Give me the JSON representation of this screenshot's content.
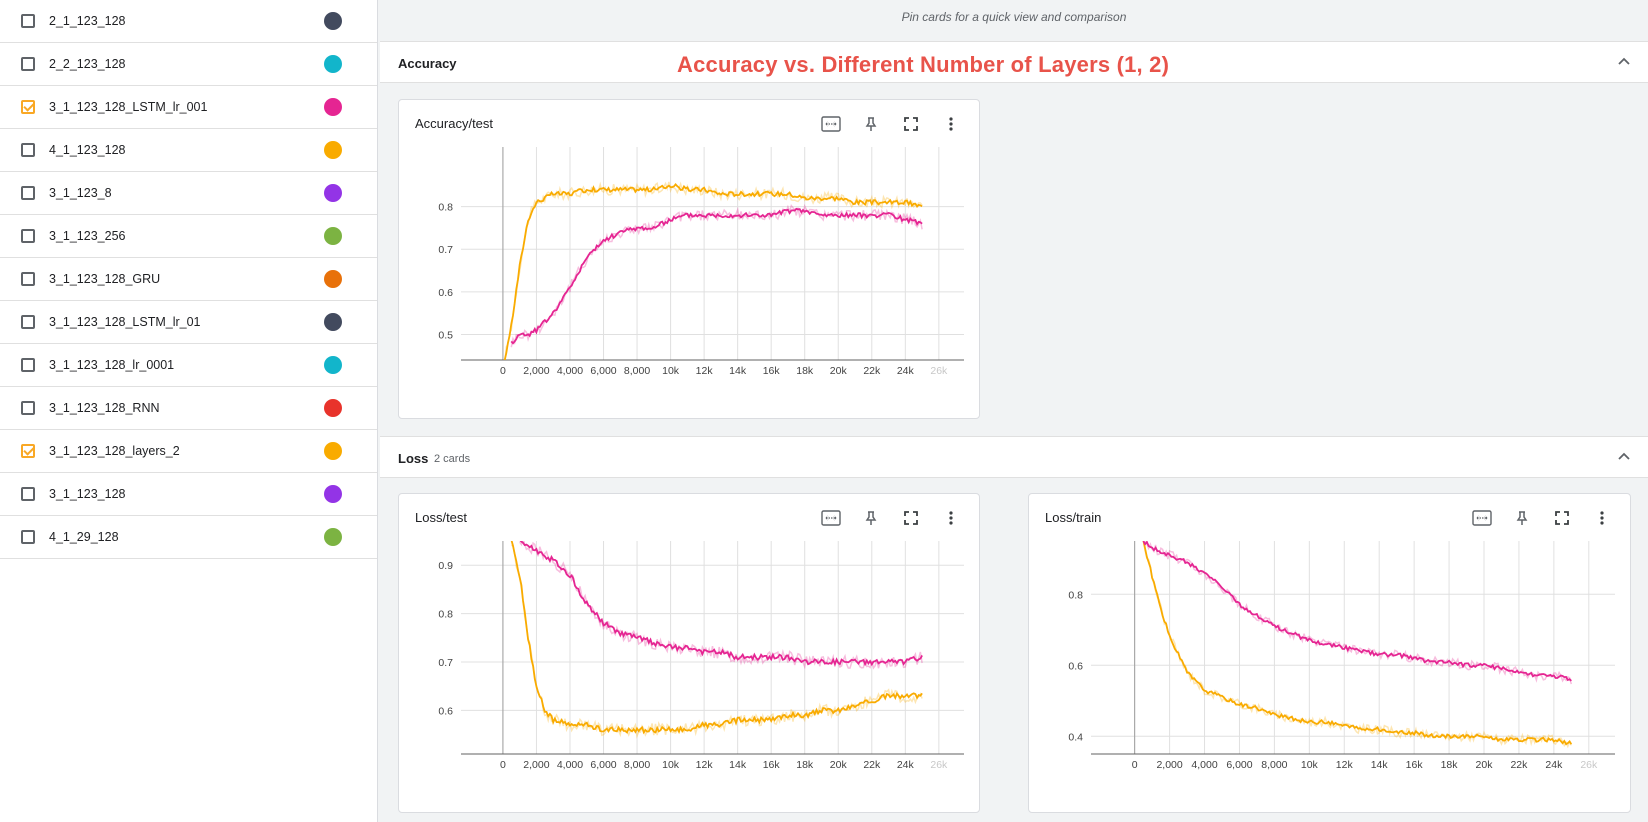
{
  "sidebar": {
    "runs": [
      {
        "label": "2_1_123_128",
        "checked": false,
        "color": "#424a5e"
      },
      {
        "label": "2_2_123_128",
        "checked": false,
        "color": "#12b5cb"
      },
      {
        "label": "3_1_123_128_LSTM_lr_001",
        "checked": true,
        "color": "#e52592"
      },
      {
        "label": "4_1_123_128",
        "checked": false,
        "color": "#f9ab00"
      },
      {
        "label": "3_1_123_8",
        "checked": false,
        "color": "#9334e6"
      },
      {
        "label": "3_1_123_256",
        "checked": false,
        "color": "#7cb342"
      },
      {
        "label": "3_1_123_128_GRU",
        "checked": false,
        "color": "#e8710a"
      },
      {
        "label": "3_1_123_128_LSTM_lr_01",
        "checked": false,
        "color": "#424a5e"
      },
      {
        "label": "3_1_123_128_lr_0001",
        "checked": false,
        "color": "#12b5cb"
      },
      {
        "label": "3_1_123_128_RNN",
        "checked": false,
        "color": "#e8332b"
      },
      {
        "label": "3_1_123_128_layers_2",
        "checked": true,
        "color": "#f9ab00"
      },
      {
        "label": "3_1_123_128",
        "checked": false,
        "color": "#9334e6"
      },
      {
        "label": "4_1_29_128",
        "checked": false,
        "color": "#7cb342"
      }
    ]
  },
  "main": {
    "pin_hint": "Pin cards for a quick view and comparison",
    "annotation": "Accuracy vs. Different Number of Layers (1, 2)",
    "accuracy_group": {
      "title": "Accuracy"
    },
    "loss_group": {
      "title": "Loss",
      "count": "2 cards"
    }
  },
  "icons": [
    "fit-domain-icon",
    "pin-icon",
    "fullscreen-icon",
    "more-vert-icon",
    "chevron-up-icon"
  ],
  "colors": {
    "pink": "#e52592",
    "orange": "#f9ab00"
  },
  "chart_data": [
    {
      "type": "line",
      "title": "Accuracy/test",
      "xlim": [
        -2500,
        27500
      ],
      "ylim": [
        0.44,
        0.94
      ],
      "xticks": [
        0,
        2000,
        4000,
        6000,
        8000,
        10000,
        12000,
        14000,
        16000,
        18000,
        20000,
        22000,
        24000,
        26000
      ],
      "xtick_labels": [
        "0",
        "2,000",
        "4,000",
        "6,000",
        "8,000",
        "10k",
        "12k",
        "14k",
        "16k",
        "18k",
        "20k",
        "22k",
        "24k",
        "26k"
      ],
      "yticks": [
        0.5,
        0.6,
        0.7,
        0.8
      ],
      "ytick_labels": [
        "0.5",
        "0.6",
        "0.7",
        "0.8"
      ],
      "grid": true,
      "series": [
        {
          "color": "#f9ab00",
          "x": [
            0,
            500,
            1000,
            1500,
            2000,
            2500,
            3000,
            4000,
            5000,
            6000,
            7000,
            8000,
            9000,
            10000,
            11000,
            12000,
            13000,
            14000,
            15000,
            16000,
            17000,
            18000,
            19000,
            20000,
            21000,
            22000,
            23000,
            24000,
            25000
          ],
          "y": [
            0.42,
            0.52,
            0.66,
            0.77,
            0.81,
            0.82,
            0.83,
            0.83,
            0.84,
            0.84,
            0.84,
            0.84,
            0.84,
            0.85,
            0.84,
            0.84,
            0.83,
            0.83,
            0.83,
            0.83,
            0.83,
            0.82,
            0.82,
            0.82,
            0.81,
            0.81,
            0.81,
            0.81,
            0.8
          ]
        },
        {
          "color": "#e52592",
          "x": [
            500,
            1000,
            1500,
            2000,
            3000,
            4000,
            5000,
            6000,
            7000,
            8000,
            9000,
            10000,
            11000,
            12000,
            13000,
            14000,
            15000,
            16000,
            17000,
            18000,
            19000,
            20000,
            21000,
            22000,
            23000,
            24000,
            25000
          ],
          "y": [
            0.48,
            0.5,
            0.5,
            0.51,
            0.55,
            0.61,
            0.68,
            0.72,
            0.74,
            0.75,
            0.75,
            0.77,
            0.78,
            0.78,
            0.78,
            0.78,
            0.78,
            0.78,
            0.79,
            0.79,
            0.78,
            0.78,
            0.78,
            0.78,
            0.78,
            0.77,
            0.76
          ]
        }
      ]
    },
    {
      "type": "line",
      "title": "Loss/test",
      "xlim": [
        -2500,
        27500
      ],
      "ylim": [
        0.51,
        0.95
      ],
      "xticks": [
        0,
        2000,
        4000,
        6000,
        8000,
        10000,
        12000,
        14000,
        16000,
        18000,
        20000,
        22000,
        24000,
        26000
      ],
      "xtick_labels": [
        "0",
        "2,000",
        "4,000",
        "6,000",
        "8,000",
        "10k",
        "12k",
        "14k",
        "16k",
        "18k",
        "20k",
        "22k",
        "24k",
        "26k"
      ],
      "yticks": [
        0.6,
        0.7,
        0.8,
        0.9
      ],
      "ytick_labels": [
        "0.6",
        "0.7",
        "0.8",
        "0.9"
      ],
      "grid": true,
      "series": [
        {
          "color": "#f9ab00",
          "x": [
            500,
            1000,
            1500,
            2000,
            2500,
            3000,
            4000,
            5000,
            6000,
            7000,
            8000,
            9000,
            10000,
            11000,
            12000,
            13000,
            14000,
            15000,
            16000,
            17000,
            18000,
            19000,
            20000,
            21000,
            22000,
            23000,
            24000,
            25000
          ],
          "y": [
            0.95,
            0.88,
            0.75,
            0.65,
            0.6,
            0.58,
            0.57,
            0.57,
            0.56,
            0.56,
            0.56,
            0.56,
            0.56,
            0.56,
            0.57,
            0.57,
            0.58,
            0.58,
            0.58,
            0.59,
            0.59,
            0.6,
            0.6,
            0.61,
            0.62,
            0.63,
            0.63,
            0.63
          ]
        },
        {
          "color": "#e52592",
          "x": [
            1000,
            2000,
            3000,
            4000,
            5000,
            6000,
            7000,
            8000,
            9000,
            10000,
            11000,
            12000,
            13000,
            14000,
            15000,
            16000,
            17000,
            18000,
            19000,
            20000,
            21000,
            22000,
            23000,
            24000,
            25000
          ],
          "y": [
            0.95,
            0.93,
            0.91,
            0.88,
            0.82,
            0.78,
            0.76,
            0.75,
            0.74,
            0.73,
            0.73,
            0.72,
            0.72,
            0.71,
            0.71,
            0.71,
            0.71,
            0.7,
            0.7,
            0.7,
            0.7,
            0.7,
            0.7,
            0.7,
            0.71
          ]
        }
      ]
    },
    {
      "type": "line",
      "title": "Loss/train",
      "xlim": [
        -2500,
        27500
      ],
      "ylim": [
        0.35,
        0.95
      ],
      "xticks": [
        0,
        2000,
        4000,
        6000,
        8000,
        10000,
        12000,
        14000,
        16000,
        18000,
        20000,
        22000,
        24000,
        26000
      ],
      "xtick_labels": [
        "0",
        "2,000",
        "4,000",
        "6,000",
        "8,000",
        "10k",
        "12k",
        "14k",
        "16k",
        "18k",
        "20k",
        "22k",
        "24k",
        "26k"
      ],
      "yticks": [
        0.4,
        0.6,
        0.8
      ],
      "ytick_labels": [
        "0.4",
        "0.6",
        "0.8"
      ],
      "grid": true,
      "series": [
        {
          "color": "#f9ab00",
          "x": [
            500,
            1000,
            1500,
            2000,
            3000,
            4000,
            5000,
            6000,
            7000,
            8000,
            9000,
            10000,
            11000,
            12000,
            13000,
            14000,
            15000,
            16000,
            17000,
            18000,
            19000,
            20000,
            21000,
            22000,
            23000,
            24000,
            25000
          ],
          "y": [
            0.95,
            0.85,
            0.76,
            0.68,
            0.58,
            0.53,
            0.51,
            0.49,
            0.48,
            0.46,
            0.45,
            0.44,
            0.44,
            0.43,
            0.42,
            0.42,
            0.41,
            0.41,
            0.4,
            0.4,
            0.4,
            0.4,
            0.39,
            0.39,
            0.39,
            0.39,
            0.38
          ]
        },
        {
          "color": "#e52592",
          "x": [
            500,
            1000,
            2000,
            3000,
            4000,
            5000,
            6000,
            7000,
            8000,
            9000,
            10000,
            11000,
            12000,
            13000,
            14000,
            15000,
            16000,
            17000,
            18000,
            19000,
            20000,
            21000,
            22000,
            23000,
            24000,
            25000
          ],
          "y": [
            0.95,
            0.93,
            0.91,
            0.89,
            0.86,
            0.82,
            0.77,
            0.74,
            0.71,
            0.69,
            0.67,
            0.66,
            0.65,
            0.64,
            0.63,
            0.63,
            0.62,
            0.61,
            0.61,
            0.6,
            0.6,
            0.59,
            0.58,
            0.57,
            0.57,
            0.56
          ]
        }
      ]
    }
  ]
}
